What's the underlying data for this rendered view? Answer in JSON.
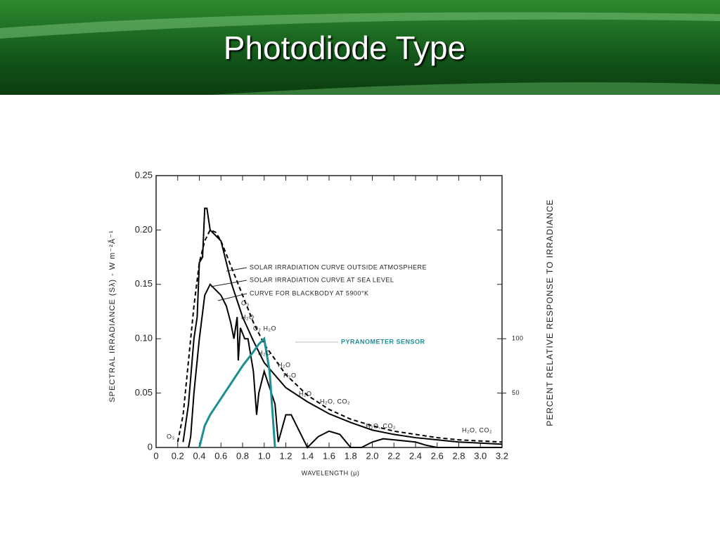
{
  "slide_title": "Photodiode Type",
  "chart_data": {
    "type": "line",
    "x_label": "WAVELENGTH (μ)",
    "y_label": "SPECTRAL IRRADIANCE (Sλ) - W m⁻²Å⁻¹",
    "y2_label": "PERCENT RELATIVE RESPONSE TO IRRADIANCE",
    "xlim": [
      0,
      3.2
    ],
    "xticks": [
      0,
      0.2,
      0.4,
      0.6,
      0.8,
      {
        "value": 1,
        "label": "1.0"
      },
      1.2,
      1.4,
      1.6,
      1.8,
      {
        "value": 2,
        "label": "2.0"
      },
      2.2,
      2.4,
      2.6,
      2.8,
      {
        "value": 3,
        "label": "3.0"
      },
      3.2
    ],
    "ylim": [
      0,
      0.25
    ],
    "yticks": [
      0,
      0.05,
      {
        "value": 0.1,
        "label": "0.10"
      },
      0.15,
      {
        "value": 0.2,
        "label": "0.20"
      },
      0.25
    ],
    "y2lim": [
      0,
      250
    ],
    "y2ticks": [
      50,
      100
    ],
    "series": [
      {
        "name": "SOLAR IRRADIATION CURVE OUTSIDE ATMOSPHERE",
        "color": "#000000",
        "dashed": false,
        "x": [
          0.25,
          0.3,
          0.35,
          0.38,
          0.4,
          0.43,
          0.45,
          0.47,
          0.5,
          0.6,
          0.7,
          0.8,
          0.9,
          1,
          1.2,
          1.4,
          1.6,
          1.8,
          2,
          2.2,
          2.4,
          2.6,
          2.8,
          3,
          3.2
        ],
        "values": [
          0.005,
          0.04,
          0.1,
          0.12,
          0.17,
          0.175,
          0.22,
          0.22,
          0.2,
          0.19,
          0.15,
          0.12,
          0.098,
          0.078,
          0.055,
          0.042,
          0.031,
          0.023,
          0.016,
          0.012,
          0.009,
          0.007,
          0.005,
          0.004,
          0.003
        ]
      },
      {
        "name": "SOLAR IRRADIATION CURVE AT SEA LEVEL",
        "color": "#000000",
        "dashed": false,
        "x": [
          0.3,
          0.32,
          0.35,
          0.4,
          0.45,
          0.5,
          0.55,
          0.6,
          0.65,
          0.69,
          0.72,
          0.75,
          0.76,
          0.78,
          0.82,
          0.85,
          0.9,
          0.93,
          0.95,
          1,
          1.1,
          1.13,
          1.2,
          1.25,
          1.35,
          1.4,
          1.5,
          1.6,
          1.7,
          1.8,
          1.9,
          2,
          2.1,
          2.2,
          2.4,
          2.5,
          2.6,
          3.2
        ],
        "values": [
          0,
          0.01,
          0.05,
          0.1,
          0.14,
          0.15,
          0.145,
          0.14,
          0.13,
          0.115,
          0.1,
          0.12,
          0.08,
          0.11,
          0.1,
          0.1,
          0.07,
          0.03,
          0.05,
          0.07,
          0.04,
          0.005,
          0.03,
          0.03,
          0.01,
          0,
          0.01,
          0.015,
          0.012,
          0,
          0,
          0.005,
          0.008,
          0.007,
          0.005,
          0.002,
          0,
          0
        ]
      },
      {
        "name": "CURVE FOR BLACKBODY AT 5900°K",
        "color": "#000000",
        "dashed": true,
        "x": [
          0.2,
          0.25,
          0.3,
          0.35,
          0.4,
          0.45,
          0.5,
          0.55,
          0.6,
          0.7,
          0.8,
          0.9,
          1,
          1.2,
          1.4,
          1.6,
          1.8,
          2,
          2.2,
          2.4,
          2.6,
          2.8,
          3,
          3.2
        ],
        "values": [
          0.005,
          0.03,
          0.08,
          0.13,
          0.17,
          0.19,
          0.2,
          0.198,
          0.19,
          0.165,
          0.14,
          0.115,
          0.095,
          0.067,
          0.048,
          0.035,
          0.026,
          0.02,
          0.015,
          0.012,
          0.009,
          0.007,
          0.006,
          0.005
        ]
      },
      {
        "name": "PYRANOMETER SENSOR",
        "color": "#1a8f96",
        "dashed": false,
        "axis": "y2",
        "x": [
          0.4,
          0.45,
          0.5,
          0.6,
          0.7,
          0.8,
          0.9,
          0.95,
          1,
          1.05,
          1.1
        ],
        "values": [
          0,
          20,
          30,
          45,
          60,
          75,
          88,
          95,
          100,
          70,
          0
        ]
      }
    ],
    "annotations": [
      "O₃",
      "H₂O",
      "O₂ H₂O",
      "H₂O",
      "H₂O",
      "H₂O",
      "H₂O",
      "H₂O, CO₂",
      "H₂O, CO₂",
      "H₂O, CO₂",
      "O₃"
    ]
  }
}
